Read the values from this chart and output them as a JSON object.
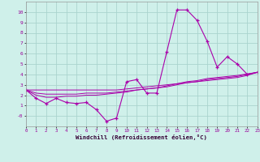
{
  "xlabel": "Windchill (Refroidissement éolien,°C)",
  "bg_color": "#cff0ea",
  "grid_color": "#aad4ce",
  "line_color": "#aa00aa",
  "x": [
    0,
    1,
    2,
    3,
    4,
    5,
    6,
    7,
    8,
    9,
    10,
    11,
    12,
    13,
    14,
    15,
    16,
    17,
    18,
    19,
    20,
    21,
    22,
    23
  ],
  "y_main": [
    2.5,
    1.7,
    1.2,
    1.7,
    1.3,
    1.2,
    1.3,
    0.6,
    -0.5,
    -0.2,
    3.3,
    3.5,
    2.2,
    2.2,
    6.2,
    10.2,
    10.2,
    9.2,
    7.2,
    4.7,
    5.7,
    5.0,
    4.0,
    4.2
  ],
  "y_line2": [
    2.5,
    2.5,
    2.5,
    2.5,
    2.5,
    2.5,
    2.5,
    2.5,
    2.5,
    2.5,
    2.6,
    2.7,
    2.8,
    2.9,
    3.0,
    3.1,
    3.2,
    3.3,
    3.4,
    3.5,
    3.6,
    3.7,
    3.9,
    4.2
  ],
  "y_line3": [
    2.5,
    2.2,
    2.1,
    2.1,
    2.1,
    2.1,
    2.2,
    2.2,
    2.2,
    2.3,
    2.4,
    2.5,
    2.6,
    2.7,
    2.8,
    3.0,
    3.2,
    3.3,
    3.5,
    3.6,
    3.7,
    3.8,
    4.0,
    4.2
  ],
  "y_line4": [
    2.5,
    2.0,
    1.8,
    1.8,
    1.9,
    1.9,
    2.0,
    2.0,
    2.1,
    2.2,
    2.3,
    2.5,
    2.6,
    2.7,
    2.9,
    3.1,
    3.3,
    3.4,
    3.6,
    3.7,
    3.8,
    3.9,
    4.05,
    4.2
  ],
  "ylim": [
    -1,
    11
  ],
  "xlim": [
    0,
    23
  ],
  "yticks": [
    0,
    1,
    2,
    3,
    4,
    5,
    6,
    7,
    8,
    9,
    10
  ],
  "ytick_labels": [
    "-0",
    "1",
    "2",
    "3",
    "4",
    "5",
    "6",
    "7",
    "8",
    "9",
    "10"
  ]
}
